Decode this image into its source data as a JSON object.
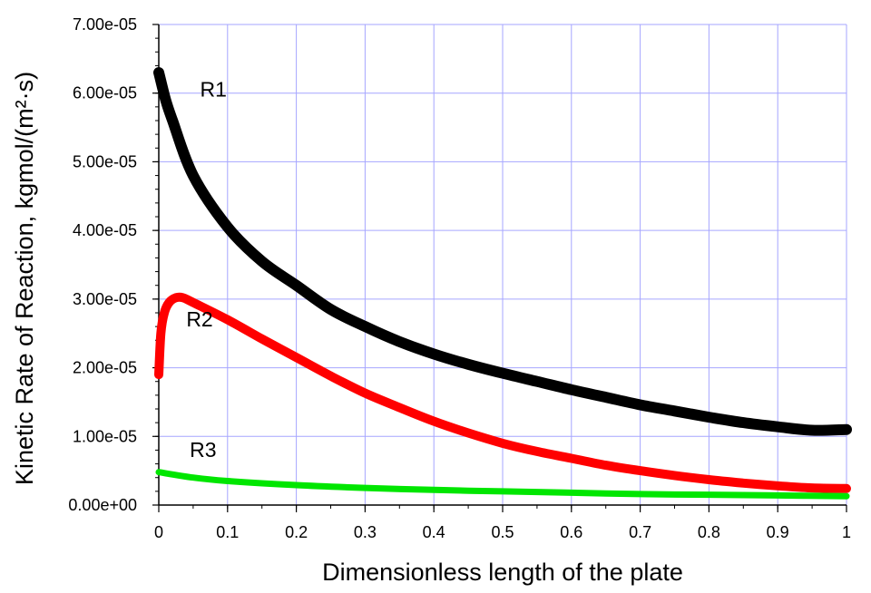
{
  "chart_data": {
    "type": "line",
    "title": "",
    "xlabel": "Dimensionless length of the plate",
    "ylabel": "Kinetic Rate of Reaction, kgmol/(m²·s)",
    "xlim": [
      0,
      1
    ],
    "ylim": [
      0,
      7e-05
    ],
    "grid": true,
    "x_ticks": [
      "0",
      "0.1",
      "0.2",
      "0.3",
      "0.4",
      "0.5",
      "0.6",
      "0.7",
      "0.8",
      "0.9",
      "1"
    ],
    "y_ticks": [
      "0.00e+00",
      "1.00e-05",
      "2.00e-05",
      "3.00e-05",
      "4.00e-05",
      "5.00e-05",
      "6.00e-05",
      "7.00e-05"
    ],
    "colors": {
      "grid": "#a6a6ff",
      "R1": "#000000",
      "R2": "#ff0000",
      "R3": "#00e600"
    },
    "series": [
      {
        "name": "R1",
        "x": [
          0,
          0.01,
          0.02,
          0.05,
          0.1,
          0.15,
          0.2,
          0.25,
          0.3,
          0.35,
          0.4,
          0.45,
          0.5,
          0.55,
          0.6,
          0.65,
          0.7,
          0.75,
          0.8,
          0.85,
          0.9,
          0.95,
          1.0
        ],
        "y": [
          6.3e-05,
          5.9e-05,
          5.6e-05,
          4.8e-05,
          4.05e-05,
          3.55e-05,
          3.2e-05,
          2.85e-05,
          2.6e-05,
          2.38e-05,
          2.2e-05,
          2.05e-05,
          1.92e-05,
          1.8e-05,
          1.68e-05,
          1.57e-05,
          1.46e-05,
          1.37e-05,
          1.28e-05,
          1.2e-05,
          1.14e-05,
          1.09e-05,
          1.1e-05
        ]
      },
      {
        "name": "R2",
        "x": [
          0,
          0.003,
          0.008,
          0.015,
          0.025,
          0.035,
          0.05,
          0.1,
          0.15,
          0.2,
          0.25,
          0.3,
          0.35,
          0.4,
          0.45,
          0.5,
          0.55,
          0.6,
          0.65,
          0.7,
          0.75,
          0.8,
          0.85,
          0.9,
          0.95,
          1.0
        ],
        "y": [
          1.9e-05,
          2.5e-05,
          2.8e-05,
          2.95e-05,
          3.02e-05,
          3.02e-05,
          2.95e-05,
          2.7e-05,
          2.42e-05,
          2.15e-05,
          1.88e-05,
          1.63e-05,
          1.42e-05,
          1.22e-05,
          1.05e-05,
          9e-06,
          7.8e-06,
          6.8e-06,
          5.8e-06,
          5e-06,
          4.3e-06,
          3.7e-06,
          3.2e-06,
          2.8e-06,
          2.5e-06,
          2.4e-06
        ]
      },
      {
        "name": "R3",
        "x": [
          0,
          0.05,
          0.1,
          0.2,
          0.3,
          0.4,
          0.5,
          0.6,
          0.7,
          0.8,
          0.9,
          1.0
        ],
        "y": [
          4.8e-06,
          4e-06,
          3.5e-06,
          2.9e-06,
          2.5e-06,
          2.2e-06,
          2e-06,
          1.8e-06,
          1.6e-06,
          1.5e-06,
          1.4e-06,
          1.3e-06
        ]
      }
    ],
    "annotations": [
      {
        "text": "R1",
        "x": 0.06,
        "y": 5.95e-05
      },
      {
        "text": "R2",
        "x": 0.04,
        "y": 2.6e-05
      },
      {
        "text": "R3",
        "x": 0.045,
        "y": 7e-06
      }
    ]
  }
}
